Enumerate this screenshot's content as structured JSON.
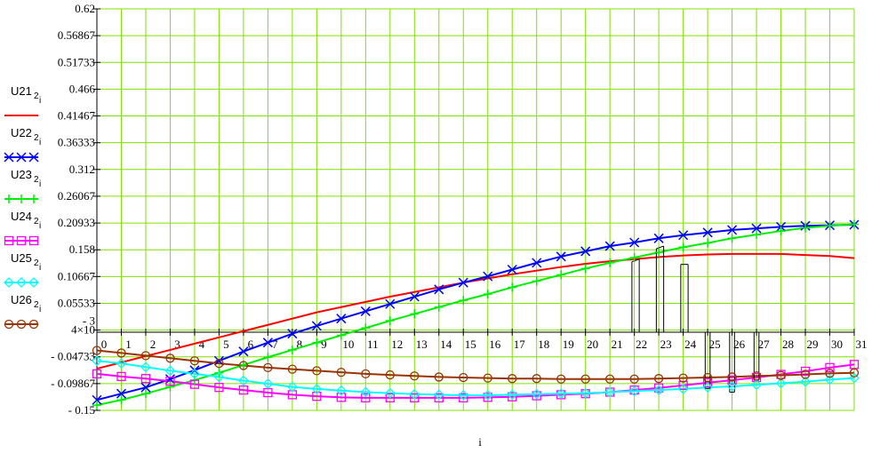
{
  "chart_data": {
    "type": "line",
    "xlabel": "i",
    "ylabel": "",
    "x": [
      0,
      1,
      2,
      3,
      4,
      5,
      6,
      7,
      8,
      9,
      10,
      11,
      12,
      13,
      14,
      15,
      16,
      17,
      18,
      19,
      20,
      21,
      22,
      23,
      24,
      25,
      26,
      27,
      28,
      29,
      30,
      31
    ],
    "xlim": [
      0,
      31
    ],
    "ylim": [
      -0.15,
      0.62
    ],
    "grid": true,
    "legend_position": "left",
    "x_tick_labels": [
      "0",
      "1",
      "2",
      "3",
      "4",
      "5",
      "6",
      "7",
      "8",
      "9",
      "10",
      "11",
      "12",
      "13",
      "14",
      "15",
      "16",
      "17",
      "18",
      "19",
      "20",
      "21",
      "22",
      "23",
      "24",
      "25",
      "26",
      "27",
      "28",
      "29",
      "30",
      "31"
    ],
    "y_ticks": [
      {
        "value": 0.62,
        "label": "0.62"
      },
      {
        "value": 0.56867,
        "label": "0.56867"
      },
      {
        "value": 0.51733,
        "label": "0.51733"
      },
      {
        "value": 0.466,
        "label": "0.466"
      },
      {
        "value": 0.41467,
        "label": "0.41467"
      },
      {
        "value": 0.36333,
        "label": "0.36333"
      },
      {
        "value": 0.312,
        "label": "0.312"
      },
      {
        "value": 0.26067,
        "label": "0.26067"
      },
      {
        "value": 0.20933,
        "label": "0.20933"
      },
      {
        "value": 0.158,
        "label": "0.158"
      },
      {
        "value": 0.10667,
        "label": "0.10667"
      },
      {
        "value": 0.05533,
        "label": "0.05533"
      },
      {
        "value": 0.004,
        "label": "4×10"
      },
      {
        "value": -0.04733,
        "label": "- 0.04733"
      },
      {
        "value": -0.09867,
        "label": "- 0.09867"
      },
      {
        "value": -0.15,
        "label": "- 0.15"
      }
    ],
    "y_tick_exponent": "- 3",
    "series": [
      {
        "name": "U21",
        "subscript": "2",
        "index": "i",
        "color": "#ff0000",
        "marker": "none",
        "values": [
          -0.07,
          -0.058,
          -0.046,
          -0.034,
          -0.022,
          -0.01,
          0.002,
          0.014,
          0.026,
          0.038,
          0.048,
          0.058,
          0.068,
          0.077,
          0.086,
          0.095,
          0.103,
          0.111,
          0.118,
          0.125,
          0.131,
          0.136,
          0.14,
          0.144,
          0.147,
          0.149,
          0.15,
          0.15,
          0.15,
          0.148,
          0.146,
          0.142
        ]
      },
      {
        "name": "U22",
        "subscript": "2",
        "index": "i",
        "color": "#0000ff",
        "marker": "x",
        "values": [
          -0.13,
          -0.118,
          -0.106,
          -0.09,
          -0.073,
          -0.055,
          -0.037,
          -0.02,
          -0.003,
          0.012,
          0.026,
          0.04,
          0.054,
          0.068,
          0.082,
          0.095,
          0.107,
          0.12,
          0.133,
          0.145,
          0.155,
          0.165,
          0.172,
          0.18,
          0.186,
          0.191,
          0.196,
          0.199,
          0.202,
          0.204,
          0.205,
          0.206
        ]
      },
      {
        "name": "U23",
        "subscript": "2",
        "index": "i",
        "color": "#00ee00",
        "marker": "+",
        "values": [
          -0.14,
          -0.13,
          -0.118,
          -0.105,
          -0.092,
          -0.078,
          -0.063,
          -0.048,
          -0.034,
          -0.02,
          -0.006,
          0.008,
          0.022,
          0.035,
          0.048,
          0.061,
          0.073,
          0.086,
          0.098,
          0.11,
          0.122,
          0.133,
          0.143,
          0.153,
          0.163,
          0.171,
          0.18,
          0.187,
          0.194,
          0.2,
          0.204,
          0.207
        ]
      },
      {
        "name": "U24",
        "subscript": "2",
        "index": "i",
        "color": "#ff00ff",
        "marker": "square",
        "values": [
          -0.08,
          -0.085,
          -0.089,
          -0.094,
          -0.1,
          -0.106,
          -0.111,
          -0.116,
          -0.12,
          -0.123,
          -0.125,
          -0.126,
          -0.126,
          -0.126,
          -0.126,
          -0.126,
          -0.125,
          -0.124,
          -0.122,
          -0.12,
          -0.118,
          -0.115,
          -0.111,
          -0.107,
          -0.102,
          -0.097,
          -0.092,
          -0.087,
          -0.081,
          -0.075,
          -0.068,
          -0.062
        ]
      },
      {
        "name": "U25",
        "subscript": "2",
        "index": "i",
        "color": "#00ffff",
        "marker": "diamond",
        "values": [
          -0.055,
          -0.06,
          -0.067,
          -0.074,
          -0.08,
          -0.086,
          -0.093,
          -0.099,
          -0.105,
          -0.109,
          -0.112,
          -0.115,
          -0.117,
          -0.119,
          -0.12,
          -0.121,
          -0.121,
          -0.12,
          -0.119,
          -0.118,
          -0.117,
          -0.115,
          -0.113,
          -0.111,
          -0.109,
          -0.106,
          -0.104,
          -0.101,
          -0.098,
          -0.095,
          -0.091,
          -0.088
        ]
      },
      {
        "name": "U26",
        "subscript": "2",
        "index": "i",
        "color": "#993300",
        "marker": "circle",
        "values": [
          -0.035,
          -0.04,
          -0.045,
          -0.05,
          -0.055,
          -0.06,
          -0.064,
          -0.068,
          -0.071,
          -0.074,
          -0.077,
          -0.08,
          -0.082,
          -0.084,
          -0.086,
          -0.087,
          -0.088,
          -0.089,
          -0.089,
          -0.09,
          -0.09,
          -0.09,
          -0.09,
          -0.089,
          -0.088,
          -0.087,
          -0.086,
          -0.084,
          -0.083,
          -0.081,
          -0.079,
          -0.078
        ]
      }
    ],
    "stem_groups": [
      {
        "x": [
          21.9,
          22.2,
          22.9,
          23.2,
          23.9,
          24.2
        ],
        "from": 0.0,
        "to": [
          0.135,
          0.14,
          0.16,
          0.165,
          0.13,
          0.13
        ],
        "color": "#000000"
      },
      {
        "x": [
          24.9,
          25.1
        ],
        "from": 0.0,
        "to": [
          -0.108,
          -0.108
        ],
        "color": "#000000"
      },
      {
        "x": [
          25.9,
          26.1
        ],
        "from": 0.0,
        "to": [
          -0.115,
          -0.115
        ],
        "color": "#000000"
      },
      {
        "x": [
          26.9,
          27.1
        ],
        "from": 0.0,
        "to": [
          -0.092,
          -0.092
        ],
        "color": "#000000"
      }
    ]
  }
}
